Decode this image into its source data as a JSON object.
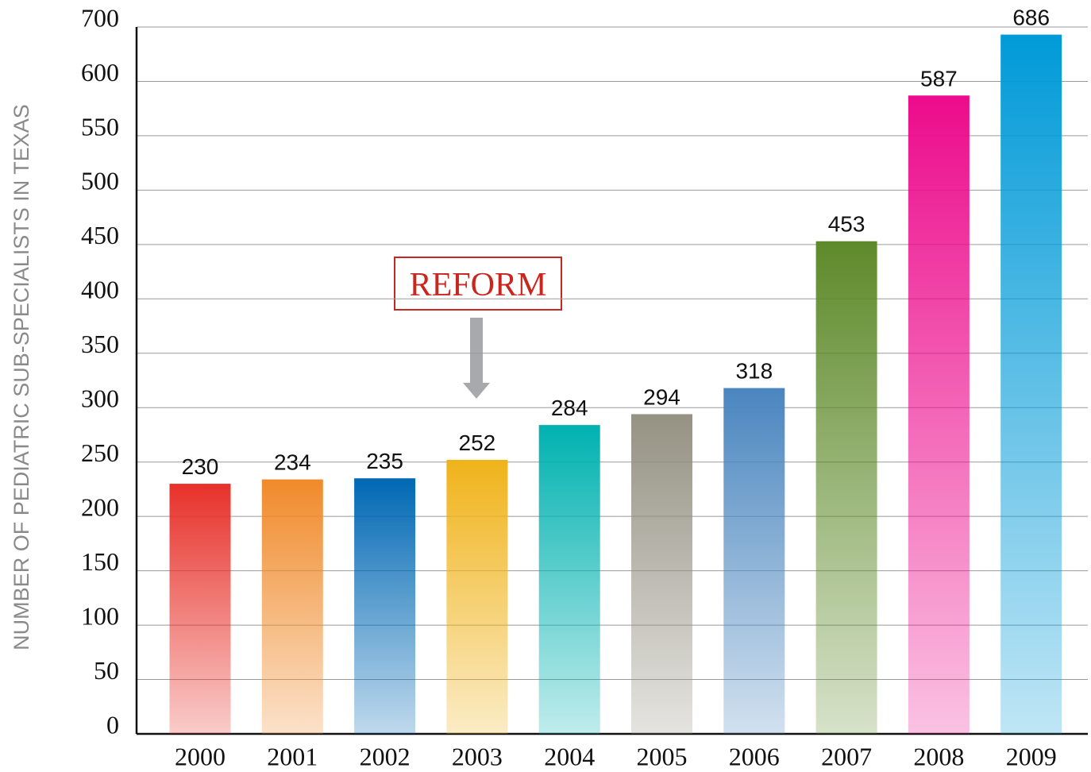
{
  "chart_data": {
    "type": "bar",
    "y_label": "NUMBER OF PEDIATRIC SUB-SPECIALISTS IN TEXAS",
    "categories": [
      "2000",
      "2001",
      "2002",
      "2003",
      "2004",
      "2005",
      "2006",
      "2007",
      "2008",
      "2009"
    ],
    "values": [
      230,
      234,
      235,
      252,
      284,
      294,
      318,
      453,
      587,
      686
    ],
    "colors": [
      "#e8312a",
      "#f08a2a",
      "#0068b4",
      "#f0b31a",
      "#00b2b0",
      "#959283",
      "#4a86bf",
      "#5e8a2a",
      "#ec0b8c",
      "#009ad8"
    ],
    "ylim": [
      0,
      700
    ],
    "yticks": [
      0,
      50,
      100,
      150,
      200,
      250,
      300,
      350,
      400,
      450,
      500,
      550,
      600,
      700
    ],
    "grid": true,
    "annotation": "REFORM"
  }
}
